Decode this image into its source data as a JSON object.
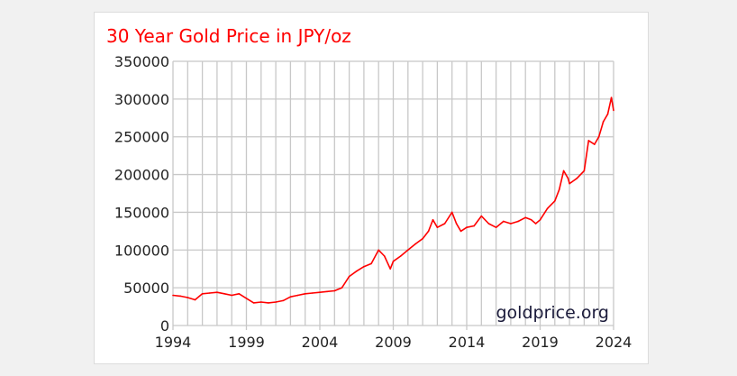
{
  "chart_data": {
    "type": "line",
    "title": "30 Year Gold Price in JPY/oz",
    "watermark": "goldprice.org",
    "xlabel": "",
    "ylabel": "",
    "xlim": [
      1994,
      2024
    ],
    "ylim": [
      0,
      350000
    ],
    "x_ticks": [
      1994,
      1999,
      2004,
      2009,
      2014,
      2019,
      2024
    ],
    "y_ticks": [
      0,
      50000,
      100000,
      150000,
      200000,
      250000,
      300000,
      350000
    ],
    "grid": true,
    "line_color": "#ff0000",
    "title_color": "#ff0000",
    "series": [
      {
        "name": "Gold Price JPY/oz",
        "x": [
          1994,
          1994.5,
          1995,
          1995.5,
          1996,
          1996.5,
          1997,
          1997.5,
          1998,
          1998.5,
          1999,
          1999.5,
          2000,
          2000.5,
          2001,
          2001.5,
          2002,
          2002.5,
          2003,
          2003.5,
          2004,
          2004.5,
          2005,
          2005.5,
          2006,
          2006.5,
          2007,
          2007.5,
          2008,
          2008.4,
          2008.8,
          2009,
          2009.5,
          2010,
          2010.5,
          2011,
          2011.4,
          2011.7,
          2012,
          2012.5,
          2013,
          2013.3,
          2013.6,
          2014,
          2014.5,
          2015,
          2015.5,
          2016,
          2016.5,
          2017,
          2017.5,
          2018,
          2018.4,
          2018.7,
          2019,
          2019.5,
          2020,
          2020.3,
          2020.6,
          2020.9,
          2021,
          2021.5,
          2022,
          2022.3,
          2022.7,
          2023,
          2023.3,
          2023.6,
          2023.85,
          2024
        ],
        "values": [
          40000,
          39000,
          37000,
          34000,
          42000,
          43000,
          44000,
          42000,
          40000,
          42000,
          36000,
          30000,
          31000,
          30000,
          31000,
          33000,
          38000,
          40000,
          42000,
          43000,
          44000,
          45000,
          46000,
          50000,
          65000,
          72000,
          78000,
          82000,
          100000,
          92000,
          75000,
          85000,
          92000,
          100000,
          108000,
          115000,
          125000,
          140000,
          130000,
          135000,
          150000,
          135000,
          125000,
          130000,
          132000,
          145000,
          135000,
          130000,
          138000,
          135000,
          138000,
          143000,
          140000,
          135000,
          140000,
          155000,
          165000,
          180000,
          205000,
          195000,
          188000,
          195000,
          205000,
          245000,
          240000,
          250000,
          270000,
          280000,
          302000,
          285000
        ]
      }
    ]
  }
}
